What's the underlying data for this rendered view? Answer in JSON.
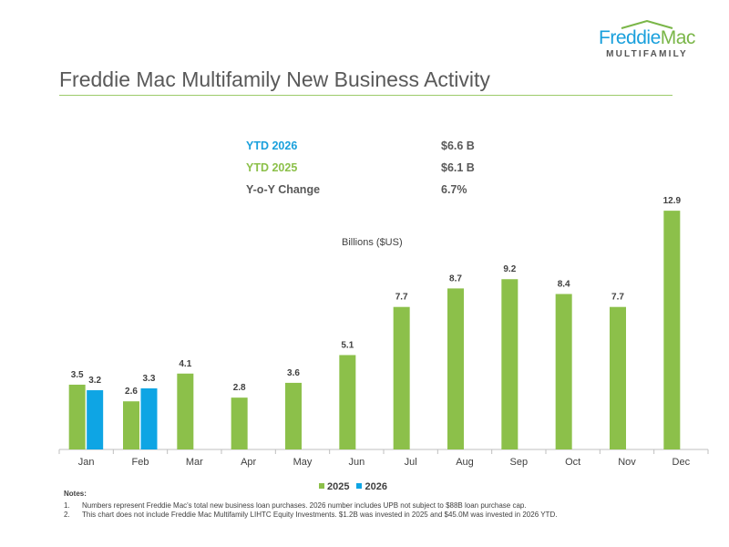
{
  "logo": {
    "word1": "Freddie",
    "word2": "Mac",
    "sub": "MULTIFAMILY"
  },
  "title": "Freddie Mac Multifamily New Business Activity",
  "kpis": [
    {
      "label": "YTD 2026",
      "value": "$6.6 B",
      "color": "#1aa0dc"
    },
    {
      "label": "YTD 2025",
      "value": "$6.1 B",
      "color": "#8cc04a"
    },
    {
      "label": "Y-o-Y Change",
      "value": "6.7%",
      "color": "#595959"
    }
  ],
  "chart_data": {
    "type": "bar",
    "ylabel": "Billions ($US)",
    "categories": [
      "Jan",
      "Feb",
      "Mar",
      "Apr",
      "May",
      "Jun",
      "Jul",
      "Aug",
      "Sep",
      "Oct",
      "Nov",
      "Dec"
    ],
    "series": [
      {
        "name": "2025",
        "color": "#8cc04a",
        "values": [
          3.5,
          2.6,
          4.1,
          2.8,
          3.6,
          5.1,
          7.7,
          8.7,
          9.2,
          8.4,
          7.7,
          12.9
        ]
      },
      {
        "name": "2026",
        "color": "#0ea5e4",
        "values": [
          3.2,
          3.3,
          null,
          null,
          null,
          null,
          null,
          null,
          null,
          null,
          null,
          null
        ]
      }
    ],
    "legend": "bottom",
    "grid": false
  },
  "notes": {
    "heading": "Notes:",
    "items": [
      {
        "num": "1.",
        "text": "Numbers represent Freddie Mac's total new business loan purchases. 2026 number includes UPB not subject to $88B loan purchase cap."
      },
      {
        "num": "2.",
        "text": "This chart does not include Freddie Mac Multifamily LIHTC Equity Investments. $1.2B was invested in 2025 and $45.0M was invested in 2026 YTD."
      }
    ]
  }
}
